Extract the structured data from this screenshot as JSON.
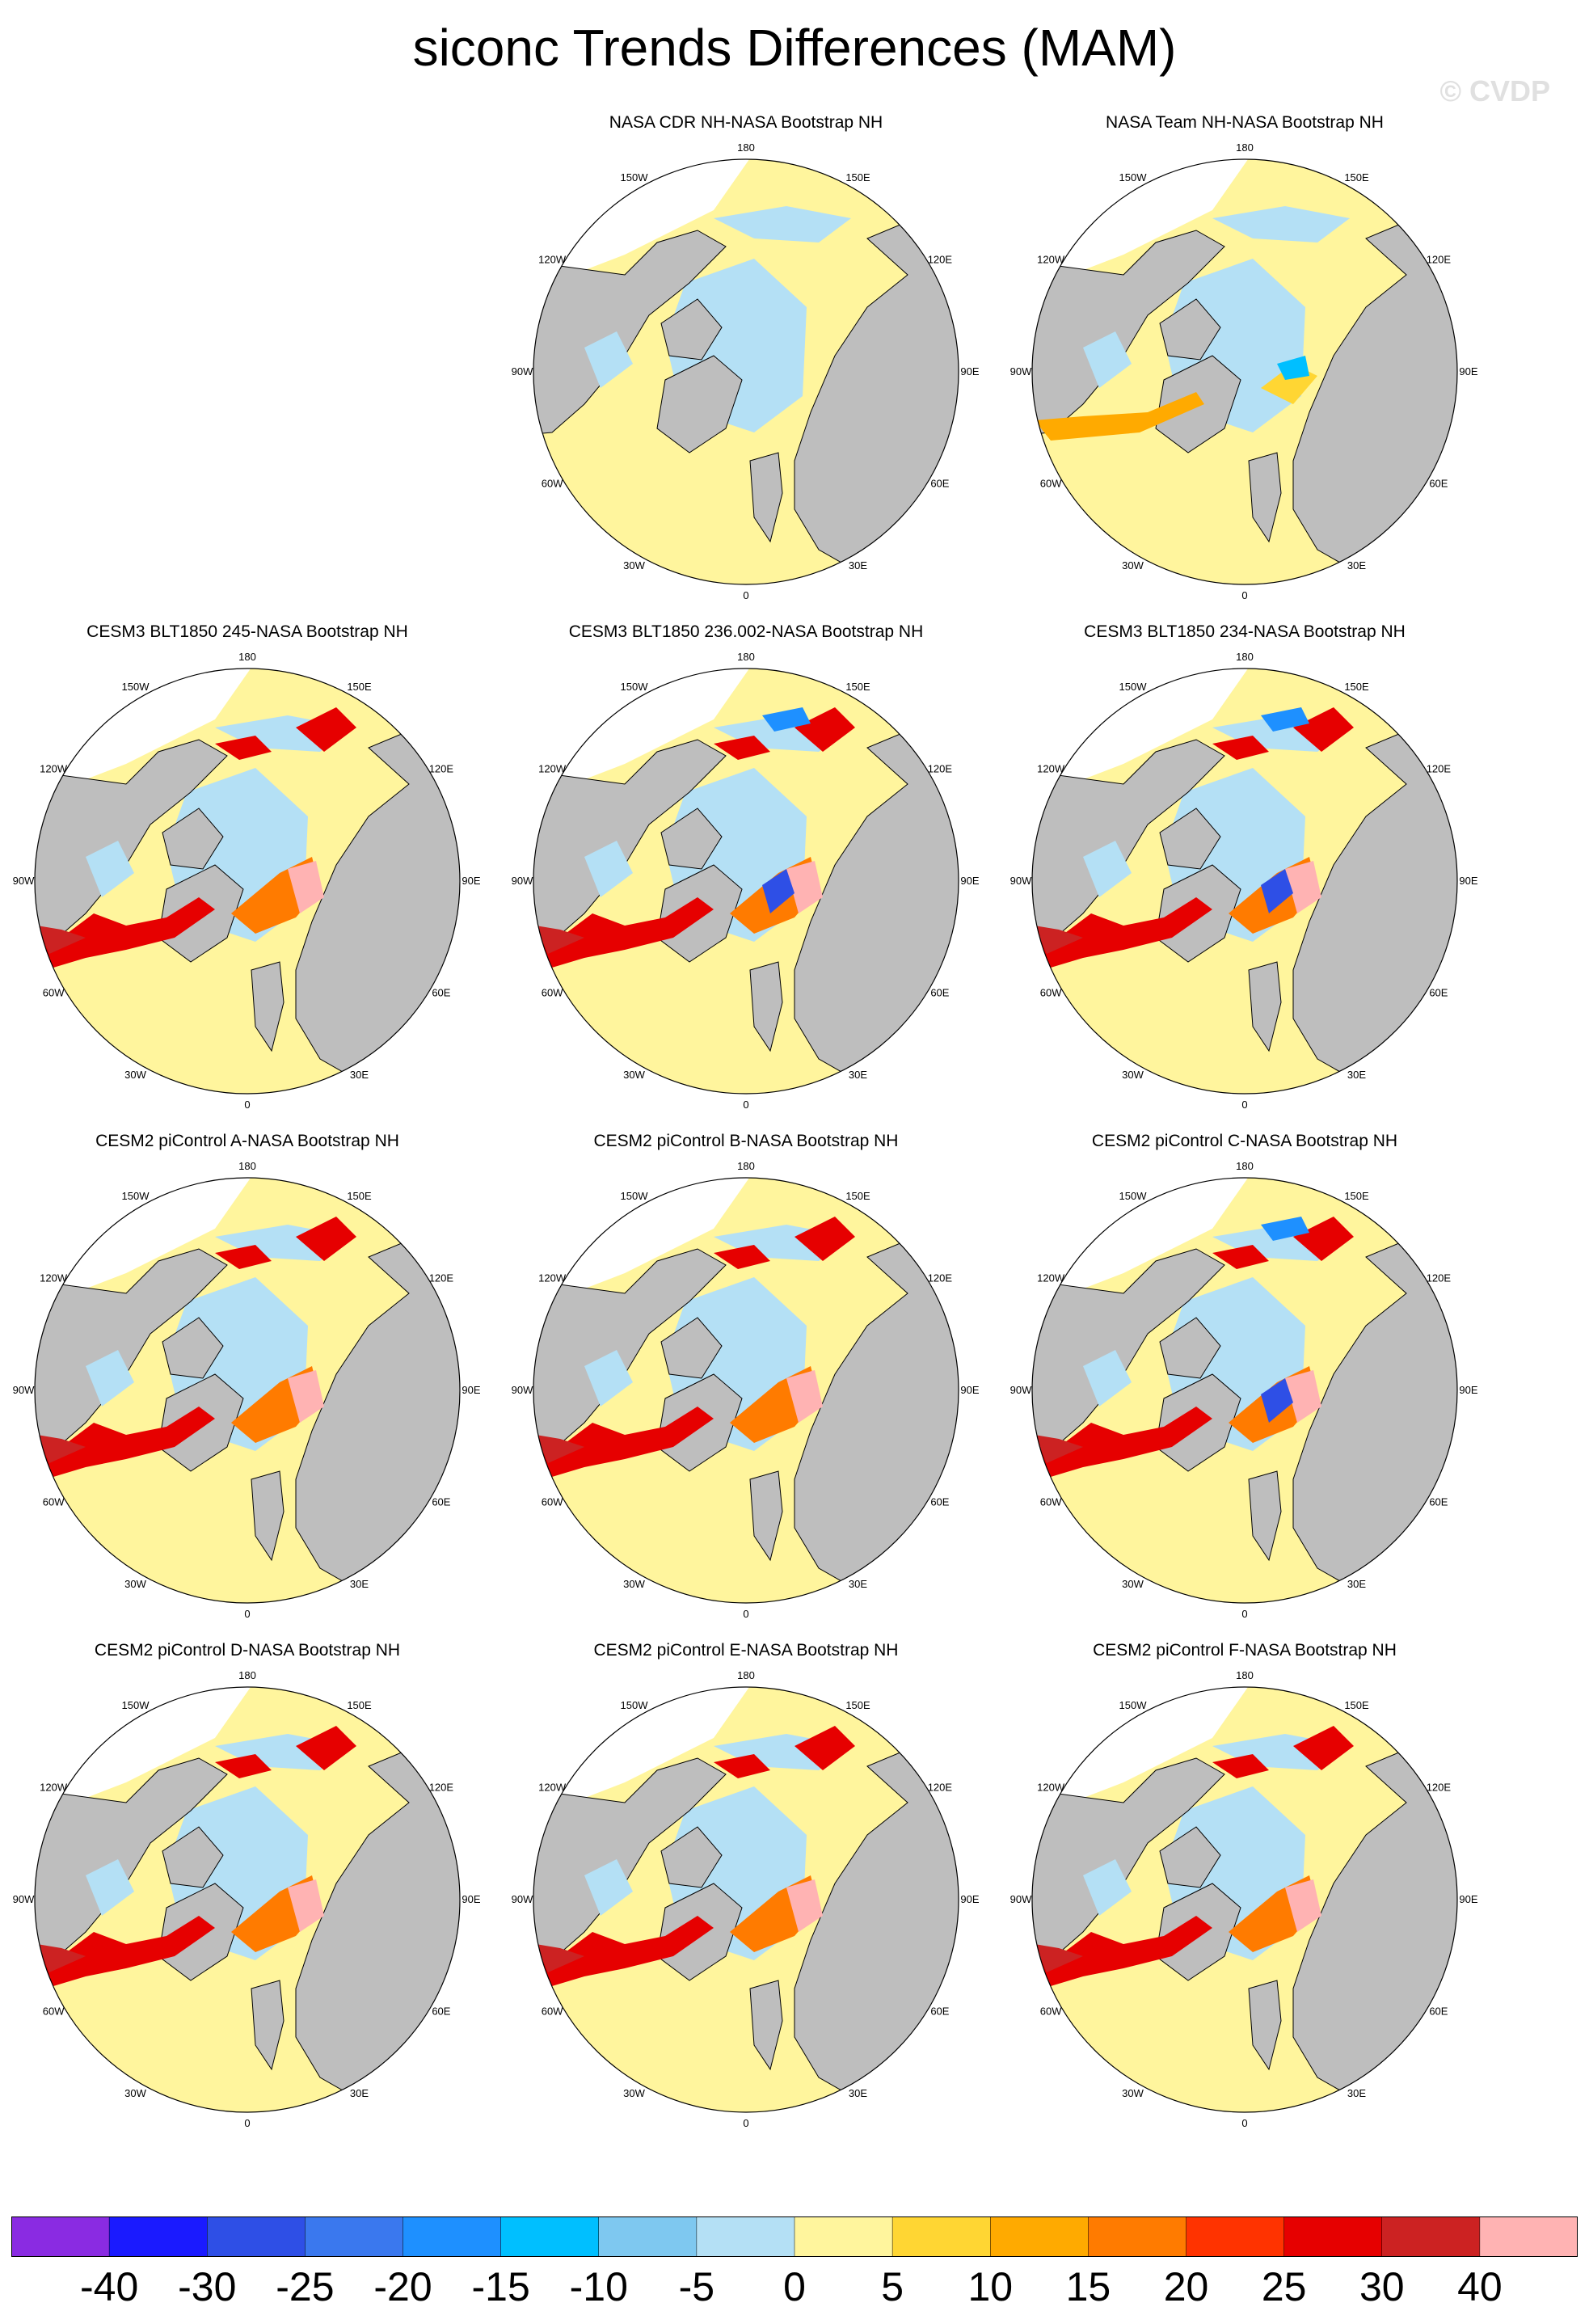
{
  "title": "siconc Trends Differences (MAM)",
  "watermark": "© CVDP",
  "colors": {
    "land": "#bebebe",
    "coastline": "#000000",
    "outside_domain": "#ffffff"
  },
  "panels": [
    {
      "title": "",
      "empty": true
    },
    {
      "title": "NASA CDR NH-NASA Bootstrap NH",
      "variant": "cdr"
    },
    {
      "title": "NASA Team NH-NASA Bootstrap NH",
      "variant": "team"
    },
    {
      "title": "CESM3 BLT1850 245-NASA Bootstrap NH",
      "variant": "model"
    },
    {
      "title": "CESM3 BLT1850 236.002-NASA Bootstrap NH",
      "variant": "model-blue"
    },
    {
      "title": "CESM3 BLT1850 234-NASA Bootstrap NH",
      "variant": "model-blue"
    },
    {
      "title": "CESM2 piControl A-NASA Bootstrap NH",
      "variant": "model"
    },
    {
      "title": "CESM2 piControl B-NASA Bootstrap NH",
      "variant": "model"
    },
    {
      "title": "CESM2 piControl C-NASA Bootstrap NH",
      "variant": "model-blue"
    },
    {
      "title": "CESM2 piControl D-NASA Bootstrap NH",
      "variant": "model"
    },
    {
      "title": "CESM2 piControl E-NASA Bootstrap NH",
      "variant": "model"
    },
    {
      "title": "CESM2 piControl F-NASA Bootstrap NH",
      "variant": "model"
    }
  ],
  "lon_labels": [
    {
      "text": "180",
      "lon": 180
    },
    {
      "text": "150E",
      "lon": 150
    },
    {
      "text": "120E",
      "lon": 120
    },
    {
      "text": "90E",
      "lon": 90
    },
    {
      "text": "60E",
      "lon": 60
    },
    {
      "text": "30E",
      "lon": 30
    },
    {
      "text": "0",
      "lon": 0
    },
    {
      "text": "30W",
      "lon": -30
    },
    {
      "text": "60W",
      "lon": -60
    },
    {
      "text": "90W",
      "lon": -90
    },
    {
      "text": "120W",
      "lon": -120
    },
    {
      "text": "150W",
      "lon": -150
    }
  ],
  "colorbar": {
    "colors": [
      "#8a2be2",
      "#1a1aff",
      "#2e4fe6",
      "#3a78ee",
      "#1e90ff",
      "#00bfff",
      "#7ec8f0",
      "#b4e0f5",
      "#fff59d",
      "#ffd633",
      "#ffaa00",
      "#ff7b00",
      "#ff3300",
      "#e60000",
      "#cc2222",
      "#ffb3b3"
    ],
    "labels": [
      "-40",
      "-30",
      "-25",
      "-20",
      "-15",
      "-10",
      "-5",
      "0",
      "5",
      "10",
      "15",
      "20",
      "25",
      "30",
      "40"
    ]
  }
}
